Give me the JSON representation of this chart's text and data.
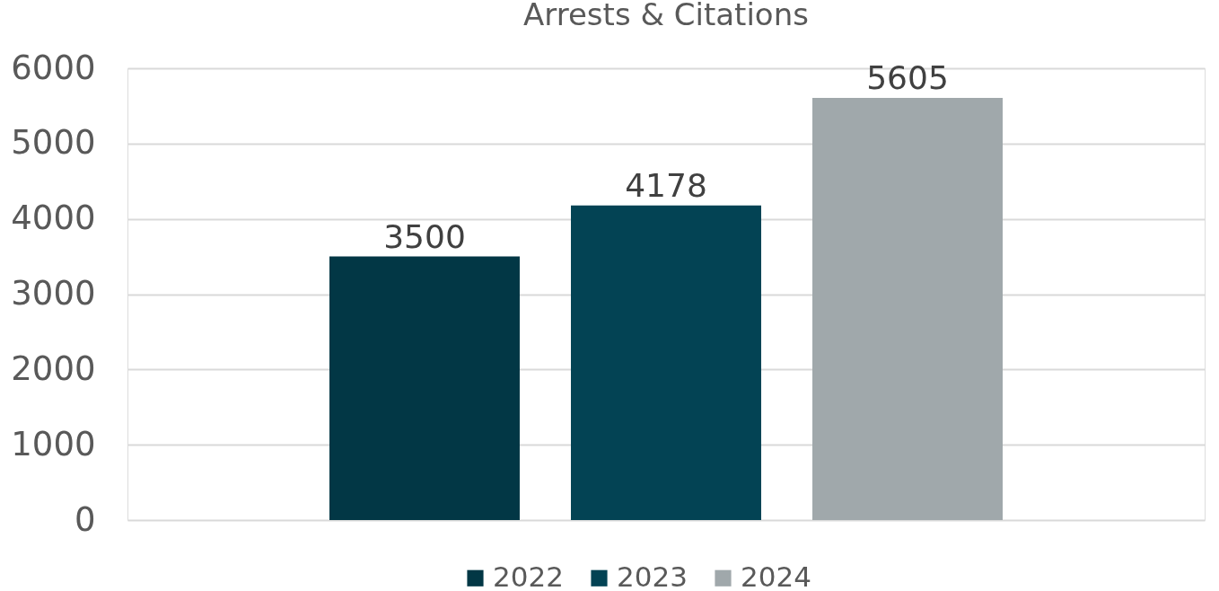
{
  "chart_data": {
    "type": "bar",
    "title": "Arrests & Citations",
    "categories": [
      null
    ],
    "series": [
      {
        "name": "2022",
        "color": "#023745",
        "values": [
          3500
        ]
      },
      {
        "name": "2023",
        "color": "#034354",
        "values": [
          4178
        ]
      },
      {
        "name": "2024",
        "color": "#a0a8ab",
        "values": [
          5605
        ]
      }
    ],
    "ylim": [
      0,
      6000
    ],
    "yticks": [
      0,
      1000,
      2000,
      3000,
      4000,
      5000,
      6000
    ],
    "grid": "y",
    "legend": "bottom",
    "data_labels": true
  }
}
